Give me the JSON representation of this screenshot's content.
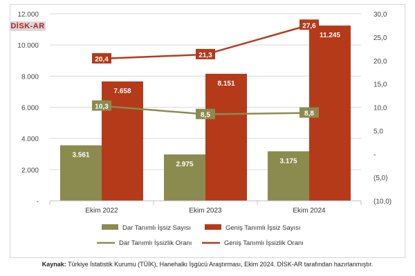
{
  "brand": {
    "logo_text": "DİSK-AR"
  },
  "source": {
    "label": "Kaynak:",
    "text": " Türkiye İstatistik Kurumu (TÜİK), Hanehalkı İşgücü Araştırması, Ekim 2024. DİSK-AR tarafından hazırlanmıştır."
  },
  "colors": {
    "narrow": "#8b8b4f",
    "broad": "#b43a1a",
    "grid": "#d9d9d9"
  },
  "chart_data": {
    "type": "bar",
    "categories": [
      "Ekim 2022",
      "Ekim 2023",
      "Ekim 2024"
    ],
    "series": [
      {
        "name": "Dar Tanımlı İşsiz Sayısı",
        "type": "bar",
        "axis": "left",
        "values": [
          3561,
          2975,
          3175
        ],
        "labels": [
          "3.561",
          "2.975",
          "3.175"
        ]
      },
      {
        "name": "Geniş Tanımlı İşsiz Sayısı",
        "type": "bar",
        "axis": "left",
        "values": [
          7658,
          8151,
          11245
        ],
        "labels": [
          "7.658",
          "8.151",
          "11.245"
        ]
      },
      {
        "name": "Dar Tanımlı İşsizlik Oranı",
        "type": "line",
        "axis": "right",
        "values": [
          10.3,
          8.5,
          8.8
        ],
        "labels": [
          "10,3",
          "8,5",
          "8,8"
        ]
      },
      {
        "name": "Geniş Tanımlı İşsizlik Oranı",
        "type": "line",
        "axis": "right",
        "values": [
          20.4,
          21.3,
          27.6
        ],
        "labels": [
          "20,4",
          "21,3",
          "27,6"
        ]
      }
    ],
    "y_left": {
      "range": [
        0,
        12000
      ],
      "ticks": [
        0,
        2000,
        4000,
        6000,
        8000,
        10000,
        12000
      ],
      "tick_labels": [
        "-",
        "2.000",
        "4.000",
        "6.000",
        "8.000",
        "10.000",
        "12.000"
      ]
    },
    "y_right": {
      "range": [
        -10,
        30
      ],
      "ticks": [
        -10,
        -5,
        0,
        5,
        10,
        15,
        20,
        25,
        30
      ],
      "tick_labels": [
        "(10,0)",
        "(5,0)",
        "-",
        "5,0",
        "10,0",
        "15,0",
        "20,0",
        "25,0",
        "30,0"
      ]
    },
    "grid": true,
    "legend_position": "bottom"
  }
}
